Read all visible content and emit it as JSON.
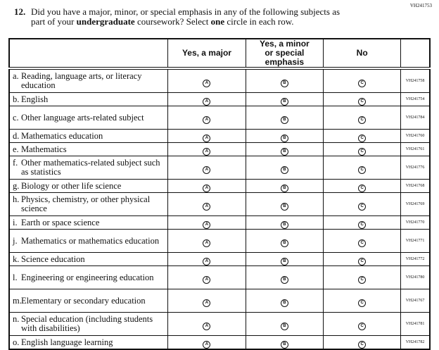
{
  "doc_id": "VH241753",
  "question": {
    "number": "12.",
    "line1": "Did you have a major, minor, or special emphasis in any of the following subjects as",
    "line2_pre": "part of your ",
    "line2_bold": "undergraduate",
    "line2_mid": " coursework? Select ",
    "line2_bold2": "one",
    "line2_post": " circle in each row."
  },
  "columns": [
    "Yes, a major",
    "Yes, a minor or special emphasis",
    "No"
  ],
  "options": [
    "A",
    "B",
    "C"
  ],
  "rows": [
    {
      "key": "a.",
      "label": "Reading, language arts, or literacy education",
      "code": "VH241758",
      "lines": 2
    },
    {
      "key": "b.",
      "label": "English",
      "code": "VH241754",
      "lines": 1
    },
    {
      "key": "c.",
      "label": "Other language arts-related subject",
      "code": "VH241784",
      "lines": 2
    },
    {
      "key": "d.",
      "label": "Mathematics education",
      "code": "VH241760",
      "lines": 1
    },
    {
      "key": "e.",
      "label": "Mathematics",
      "code": "VH241761",
      "lines": 1
    },
    {
      "key": "f.",
      "label": "Other mathematics-related subject such as statistics",
      "code": "VH241776",
      "lines": 2
    },
    {
      "key": "g.",
      "label": "Biology or other life science",
      "code": "VH241768",
      "lines": 1
    },
    {
      "key": "h.",
      "label": "Physics, chemistry, or other physical science",
      "code": "VH241769",
      "lines": 2
    },
    {
      "key": "i.",
      "label": "Earth or space science",
      "code": "VH241770",
      "lines": 1
    },
    {
      "key": "j.",
      "label": "Mathematics or mathematics education",
      "code": "VH241771",
      "lines": 2
    },
    {
      "key": "k.",
      "label": "Science education",
      "code": "VH241772",
      "lines": 1
    },
    {
      "key": "l.",
      "label": "Engineering or engineering education",
      "code": "VH241780",
      "lines": 2
    },
    {
      "key": "m.",
      "label": "Elementary or secondary education",
      "code": "VH241767",
      "lines": 2
    },
    {
      "key": "n.",
      "label": "Special education (including students with disabilities)",
      "code": "VH241781",
      "lines": 2
    },
    {
      "key": "o.",
      "label": "English language learning",
      "code": "VH241782",
      "lines": 1
    }
  ]
}
